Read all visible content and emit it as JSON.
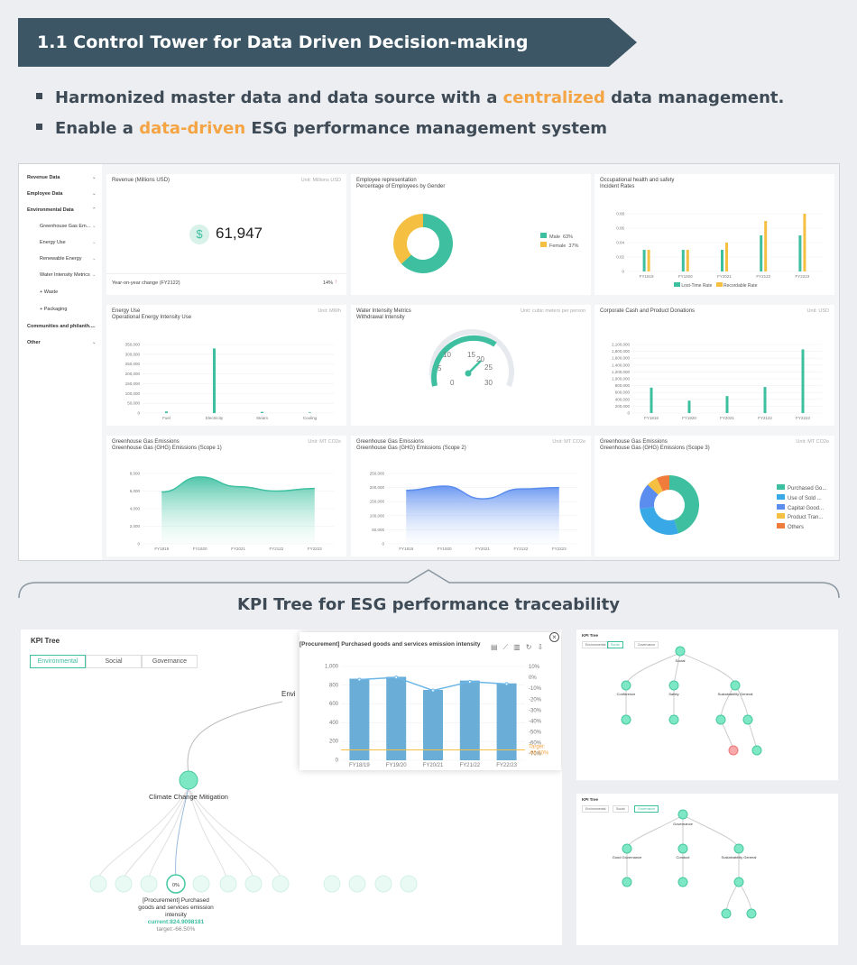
{
  "banner": {
    "title": "1.1  Control Tower for Data Driven Decision-making"
  },
  "bullets": [
    {
      "pre": "Harmonized master data and data source with a ",
      "hl": "centralized",
      "post": " data management."
    },
    {
      "pre": "Enable a ",
      "hl": "data-driven",
      "post": " ESG performance management system"
    }
  ],
  "colors": {
    "banner": "#3c5666",
    "accent": "#f5a443",
    "teal": "#3dbfa0",
    "yellow": "#f5c042",
    "blue": "#5b8def"
  },
  "sidebar": {
    "items": [
      {
        "label": "Revenue Data"
      },
      {
        "label": "Employee Data"
      },
      {
        "label": "Environmental Data"
      },
      {
        "label": "Greenhouse Gas Em..."
      },
      {
        "label": "Energy Use"
      },
      {
        "label": "Renewable Energy"
      },
      {
        "label": "Water Intensity Metrics"
      },
      {
        "label": "+ Waste"
      },
      {
        "label": "+ Packaging"
      },
      {
        "label": "Communities and philanth..."
      },
      {
        "label": "Other"
      }
    ]
  },
  "cards": {
    "revenue": {
      "title": "Revenue (Millions USD)",
      "unit": "Unit: Millions USD",
      "value": "61,947",
      "icon": "dollar-icon",
      "yoy_label": "Year-on-year change (FY2122)",
      "yoy_value": "14%",
      "arrow": "↑"
    },
    "employee": {
      "title": "Employee representation",
      "subtitle": "Percentage of Employees by Gender",
      "male": "Male",
      "male_pct": "63%",
      "female": "Female",
      "female_pct": "37%"
    },
    "ohs": {
      "title": "Occupational health and safety",
      "subtitle": "Incident Rates",
      "legend1": "Lost-Time Rate",
      "legend2": "Recordable Rate"
    },
    "energy": {
      "title": "Energy Use",
      "subtitle": "Operational Energy Intensity Use",
      "unit": "Unit: MWh"
    },
    "water": {
      "title": "Water Intensity Metrics",
      "subtitle": "Withdrawal Intensity",
      "unit": "Unit: cubic meters per person",
      "ticks": [
        "0",
        "5",
        "10",
        "15",
        "20",
        "25",
        "30"
      ]
    },
    "donations": {
      "title": "Corporate Cash and Product Donations",
      "unit": "Unit: USD"
    },
    "ghg1": {
      "title": "Greenhouse Gas Emissions",
      "subtitle": "Greenhouse Gas (GHG) Emissions  (Scope 1)",
      "unit": "Unit: MT CO2e"
    },
    "ghg2": {
      "title": "Greenhouse Gas Emissions",
      "subtitle": "Greenhouse Gas (GHG) Emissions  (Scope 2)",
      "unit": "Unit: MT CO2e"
    },
    "ghg3": {
      "title": "Greenhouse Gas Emissions",
      "subtitle": "Greenhouse Gas (GHG) Emissions  (Scope 3)",
      "unit": "Unit: MT CO2e",
      "legend": [
        "Purchased Go...",
        "Use of Sold ...",
        "Capital Good...",
        "Product Tran...",
        "Others"
      ]
    }
  },
  "chart_data": [
    {
      "type": "bar",
      "title": "Incident Rates",
      "categories": [
        "FY1819",
        "FY1920",
        "FY2021",
        "FY2122",
        "FY2223"
      ],
      "ylim": [
        0,
        0.08
      ],
      "yticks": [
        "0",
        "0.02",
        "0.04",
        "0.06",
        "0.08"
      ],
      "series": [
        {
          "name": "Lost-Time Rate",
          "values": [
            0.03,
            0.03,
            0.03,
            0.05,
            0.05
          ]
        },
        {
          "name": "Recordable Rate",
          "values": [
            0.03,
            0.03,
            0.04,
            0.07,
            0.08
          ]
        }
      ]
    },
    {
      "type": "bar",
      "title": "Operational Energy Intensity Use",
      "categories": [
        "Fuel",
        "Electricity",
        "Steam",
        "Cooling"
      ],
      "ylim": [
        0,
        350000
      ],
      "yticks": [
        "0",
        "50,000",
        "100,000",
        "150,000",
        "200,000",
        "250,000",
        "300,000",
        "350,000"
      ],
      "values": [
        8000,
        330000,
        6000,
        3000
      ]
    },
    {
      "type": "bar",
      "title": "Corporate Cash and Product Donations",
      "categories": [
        "FY1819",
        "FY1920",
        "FY2021",
        "FY2122",
        "FY2223"
      ],
      "ylim": [
        0,
        2100000
      ],
      "yticks": [
        "0",
        "200,000",
        "400,000",
        "600,000",
        "800,000",
        "1,000,000",
        "1,200,000",
        "1,400,000",
        "1,600,000",
        "1,800,000",
        "2,100,000"
      ],
      "values": [
        780000,
        380000,
        520000,
        800000,
        1950000
      ]
    },
    {
      "type": "area",
      "title": "Greenhouse Gas (GHG) Emissions  (Scope 1)",
      "categories": [
        "FY1819",
        "FY1920",
        "FY2021",
        "FY2122",
        "FY2223"
      ],
      "ylim": [
        0,
        8000
      ],
      "yticks": [
        "0",
        "2,000",
        "4,000",
        "6,000",
        "8,000"
      ],
      "values": [
        5900,
        7600,
        6500,
        6000,
        6300
      ]
    },
    {
      "type": "area",
      "title": "Greenhouse Gas (GHG) Emissions  (Scope 2)",
      "categories": [
        "FY1819",
        "FY1920",
        "FY2021",
        "FY2122",
        "FY2223"
      ],
      "ylim": [
        0,
        250000
      ],
      "yticks": [
        "0",
        "50,000",
        "100,000",
        "150,000",
        "200,000",
        "250,000"
      ],
      "values": [
        190000,
        205000,
        160000,
        195000,
        200000
      ]
    },
    {
      "type": "pie",
      "title": "Percentage of Employees by Gender",
      "categories": [
        "Male",
        "Female"
      ],
      "values": [
        63,
        37
      ]
    },
    {
      "type": "pie",
      "title": "Greenhouse Gas (GHG) Emissions  (Scope 3)",
      "categories": [
        "Purchased Go...",
        "Use of Sold ...",
        "Capital Good...",
        "Product Tran...",
        "Others"
      ],
      "values": [
        45,
        28,
        14,
        6,
        7
      ]
    },
    {
      "type": "bar",
      "title": "[Procurement] Purchased goods and services emission intensity",
      "categories": [
        "FY18/19",
        "FY19/20",
        "FY20/21",
        "FY21/22",
        "FY22/23"
      ],
      "ylim": [
        0,
        1000
      ],
      "yticks": [
        "0",
        "200",
        "400",
        "600",
        "800",
        "1,000"
      ],
      "y2ticks": [
        "10%",
        "0%",
        "-10%",
        "-20%",
        "-30%",
        "-40%",
        "-50%",
        "-60%",
        "-70%"
      ],
      "values": [
        870,
        890,
        750,
        850,
        820
      ],
      "line": [
        -2,
        0,
        -12,
        -4,
        -6
      ],
      "target_label": "Target:",
      "target_value": "-66.50%"
    }
  ],
  "kpi": {
    "section_title": "KPI Tree for ESG performance traceability",
    "panel_title": "KPI Tree",
    "tabs": [
      "Environmental",
      "Social",
      "Governance"
    ],
    "root_partial": "Envi",
    "node1": "Climate Change Mitigation",
    "leaf_badge": "0%",
    "leaf_title": "[Procurement] Purchased goods and services emission intensity",
    "leaf_current": "current:824.9098181",
    "leaf_target": "target:-66.50%",
    "popup_title": "[Procurement] Purchased goods and services emission intensity"
  },
  "mini1": {
    "title": "KPI Tree",
    "tabs": [
      "Environmental",
      "Social",
      "Governance"
    ],
    "root": "Social",
    "n1": "Conference",
    "n2": "Safety",
    "n3": "Sustainability General"
  },
  "mini2": {
    "title": "KPI Tree",
    "tabs": [
      "Environmental",
      "Social",
      "Governance"
    ],
    "root": "Governance",
    "n1": "Good Governance",
    "n2": "Conduct",
    "n3": "Sustainability General"
  }
}
